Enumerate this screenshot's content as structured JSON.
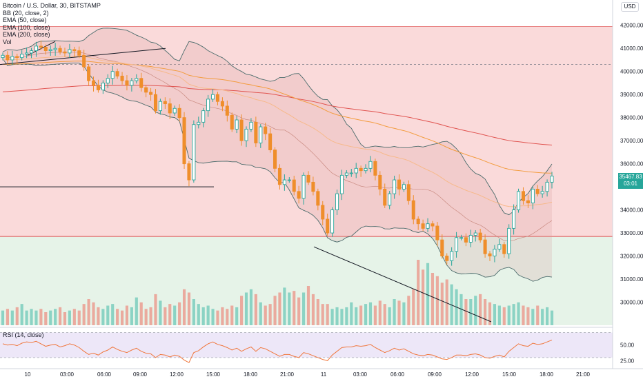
{
  "legend": {
    "title": "Bitcoin / U.S. Dollar, 30, BITSTAMP",
    "bb": "BB (20, close, 2)",
    "ema50": "EMA (50, close)",
    "ema100": "EMA (100, close)",
    "ema200": "EMA (200, close)",
    "vol": "Vol"
  },
  "rsi_label": "RSI (14, close)",
  "currency_button": "USD",
  "price_box": {
    "price": "35467.83",
    "countdown": "03:01"
  },
  "colors": {
    "up": "#26a69a",
    "down": "#ef8e2b",
    "red_zone": "#f9d3d3",
    "green_zone": "#e3f2e6",
    "ema50": "#f7b98a",
    "ema100": "#f39c3d",
    "ema200": "#e0534f",
    "bb": "#4a6b6b",
    "rsi_line": "#f0763b",
    "rsi_band": "#ede7f8"
  },
  "chart_data": {
    "type": "candlestick",
    "title": "Bitcoin / U.S. Dollar, 30, BITSTAMP",
    "ylim": [
      29000,
      42500
    ],
    "y_ticks": [
      42000,
      41000,
      40000,
      39000,
      38000,
      37000,
      36000,
      35000,
      34000,
      33000,
      32000,
      31000,
      30000
    ],
    "y_tick_labels": [
      "42000.00",
      "41000.00",
      "40000.00",
      "39000.00",
      "38000.00",
      "37000.00",
      "36000.00",
      "35000.00",
      "34000.00",
      "33000.00",
      "32000.00",
      "31000.00",
      "30000.00"
    ],
    "x_labels": [
      "10",
      "03:00",
      "06:00",
      "09:00",
      "12:00",
      "15:00",
      "18:00",
      "21:00",
      "11",
      "03:00",
      "06:00",
      "09:00",
      "12:00",
      "15:00",
      "18:00",
      "21:00"
    ],
    "resistance_level": 41950,
    "support_level": 32850,
    "dashed_level": 40300,
    "closes": [
      40700,
      40500,
      40650,
      40600,
      40750,
      40800,
      40900,
      41100,
      41050,
      40900,
      40950,
      41000,
      40850,
      40800,
      40950,
      40900,
      40700,
      40200,
      39600,
      39400,
      39200,
      39500,
      39700,
      40000,
      39800,
      39600,
      39400,
      39600,
      39700,
      39300,
      39100,
      39000,
      38300,
      38700,
      38600,
      38200,
      38400,
      38000,
      36000,
      35300,
      37700,
      37800,
      38300,
      38800,
      39000,
      38700,
      38500,
      38100,
      37500,
      37900,
      37000,
      37500,
      37800,
      36900,
      37600,
      37300,
      36600,
      35800,
      35100,
      35300,
      35300,
      34800,
      34500,
      35500,
      35200,
      34800,
      34200,
      33600,
      33000,
      34000,
      34700,
      35500,
      35600,
      35600,
      35800,
      35700,
      35800,
      36100,
      35500,
      34900,
      34200,
      34700,
      35300,
      34900,
      35100,
      34400,
      33600,
      33400,
      33200,
      33400,
      33300,
      32700,
      32000,
      31800,
      32200,
      32800,
      32800,
      32600,
      32900,
      33000,
      32700,
      32100,
      32000,
      32300,
      32500,
      32100,
      33200,
      34000,
      34800,
      34400,
      34300,
      34900,
      34700,
      34800,
      35200,
      35467.83
    ],
    "volumes": [
      9,
      10,
      9,
      11,
      13,
      9,
      10,
      9,
      10,
      8,
      9,
      10,
      11,
      8,
      9,
      10,
      9,
      13,
      16,
      14,
      11,
      10,
      12,
      13,
      10,
      9,
      12,
      11,
      17,
      14,
      10,
      11,
      19,
      15,
      11,
      13,
      12,
      14,
      22,
      20,
      16,
      13,
      11,
      12,
      10,
      9,
      11,
      10,
      12,
      11,
      18,
      20,
      22,
      19,
      14,
      12,
      13,
      18,
      20,
      23,
      20,
      21,
      17,
      20,
      24,
      19,
      16,
      13,
      13,
      10,
      11,
      10,
      11,
      14,
      11,
      12,
      13,
      14,
      12,
      15,
      13,
      11,
      16,
      15,
      14,
      18,
      22,
      40,
      34,
      38,
      32,
      30,
      26,
      28,
      25,
      22,
      19,
      16,
      16,
      18,
      19,
      16,
      14,
      13,
      12,
      11,
      12,
      13,
      14,
      12,
      11,
      10,
      12,
      10,
      11,
      9
    ],
    "rsi_ylim": [
      20,
      75
    ],
    "rsi_ticks": [
      50,
      25
    ],
    "rsi_tick_labels": [
      "50.00",
      "25.00"
    ],
    "rsi_values": [
      52,
      50,
      51,
      49,
      53,
      55,
      54,
      56,
      52,
      48,
      50,
      51,
      47,
      49,
      52,
      50,
      46,
      40,
      35,
      37,
      34,
      39,
      42,
      47,
      43,
      40,
      38,
      42,
      45,
      40,
      37,
      36,
      30,
      35,
      34,
      31,
      34,
      32,
      26,
      22,
      38,
      41,
      47,
      52,
      55,
      51,
      49,
      46,
      42,
      45,
      40,
      44,
      47,
      40,
      46,
      44,
      40,
      36,
      32,
      35,
      35,
      32,
      30,
      38,
      36,
      33,
      30,
      27,
      25,
      34,
      40,
      46,
      47,
      47,
      49,
      48,
      49,
      51,
      46,
      42,
      38,
      41,
      45,
      42,
      44,
      40,
      36,
      34,
      33,
      35,
      34,
      31,
      28,
      27,
      30,
      34,
      34,
      33,
      35,
      36,
      34,
      30,
      29,
      32,
      34,
      31,
      40,
      46,
      52,
      49,
      48,
      53,
      51,
      52,
      55,
      58
    ]
  }
}
